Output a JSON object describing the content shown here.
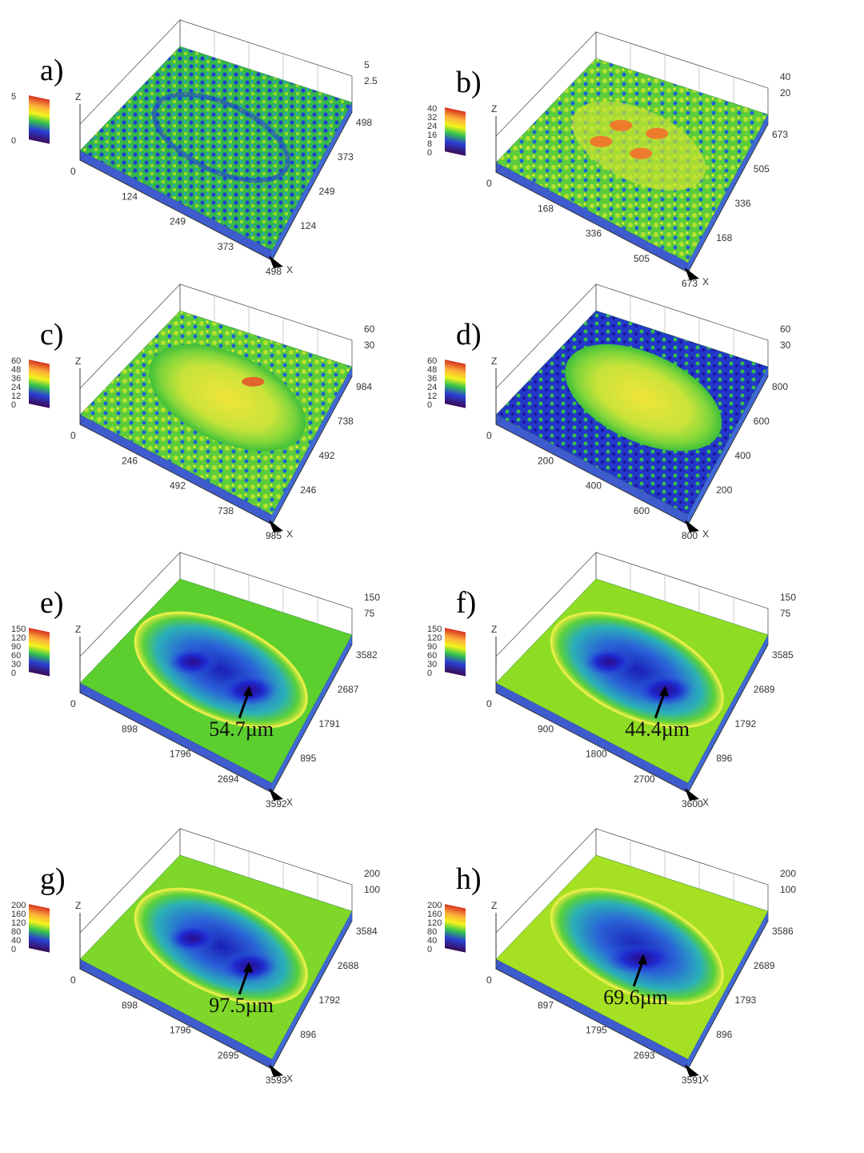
{
  "figure": {
    "panels": [
      {
        "label": "a)",
        "x_ticks": [
          "0",
          "124",
          "249",
          "373",
          "498"
        ],
        "y_ticks": [
          "124",
          "249",
          "373",
          "498"
        ],
        "z_ticks": [
          "5",
          "2.5"
        ],
        "colorbar_ticks": [
          "5",
          "0"
        ],
        "annotation": "",
        "surface": "flat-noise",
        "base": "#1aa84a"
      },
      {
        "label": "b)",
        "x_ticks": [
          "0",
          "168",
          "336",
          "505",
          "673"
        ],
        "y_ticks": [
          "168",
          "336",
          "505",
          "673"
        ],
        "z_ticks": [
          "40",
          "20"
        ],
        "colorbar_ticks": [
          "40",
          "32",
          "24",
          "16",
          "8",
          "0"
        ],
        "annotation": "",
        "surface": "rough-peaks",
        "base": "#5fcf30"
      },
      {
        "label": "c)",
        "x_ticks": [
          "0",
          "246",
          "492",
          "738",
          "985"
        ],
        "y_ticks": [
          "246",
          "492",
          "738",
          "984"
        ],
        "z_ticks": [
          "60",
          "30"
        ],
        "colorbar_ticks": [
          "60",
          "48",
          "36",
          "24",
          "12",
          "0"
        ],
        "annotation": "",
        "surface": "mound",
        "base": "#3fbf3a"
      },
      {
        "label": "d)",
        "x_ticks": [
          "0",
          "200",
          "400",
          "600",
          "800"
        ],
        "y_ticks": [
          "200",
          "400",
          "600",
          "800"
        ],
        "z_ticks": [
          "60",
          "30"
        ],
        "colorbar_ticks": [
          "60",
          "48",
          "36",
          "24",
          "12",
          "0"
        ],
        "annotation": "",
        "surface": "mound-blue",
        "base": "#2a4fd0"
      },
      {
        "label": "e)",
        "x_ticks": [
          "0",
          "898",
          "1796",
          "2694",
          "3592"
        ],
        "y_ticks": [
          "895",
          "1791",
          "2687",
          "3582"
        ],
        "z_ticks": [
          "150",
          "75"
        ],
        "colorbar_ticks": [
          "150",
          "120",
          "90",
          "60",
          "30",
          "0"
        ],
        "annotation": "54.7µm",
        "surface": "crater",
        "base": "#5ccf2e"
      },
      {
        "label": "f)",
        "x_ticks": [
          "0",
          "900",
          "1800",
          "2700",
          "3600"
        ],
        "y_ticks": [
          "896",
          "1792",
          "2689",
          "3585"
        ],
        "z_ticks": [
          "150",
          "75"
        ],
        "colorbar_ticks": [
          "150",
          "120",
          "90",
          "60",
          "30",
          "0"
        ],
        "annotation": "44.4µm",
        "surface": "crater",
        "base": "#8fdc24"
      },
      {
        "label": "g)",
        "x_ticks": [
          "0",
          "898",
          "1796",
          "2695",
          "3593"
        ],
        "y_ticks": [
          "896",
          "1792",
          "2688",
          "3584"
        ],
        "z_ticks": [
          "200",
          "100"
        ],
        "colorbar_ticks": [
          "200",
          "160",
          "120",
          "80",
          "40",
          "0"
        ],
        "annotation": "97.5µm",
        "surface": "crater",
        "base": "#7fd829"
      },
      {
        "label": "h)",
        "x_ticks": [
          "0",
          "897",
          "1795",
          "2693",
          "3591"
        ],
        "y_ticks": [
          "896",
          "1793",
          "2689",
          "3586"
        ],
        "z_ticks": [
          "200",
          "100"
        ],
        "colorbar_ticks": [
          "200",
          "160",
          "120",
          "80",
          "40",
          "0"
        ],
        "annotation": "69.6µm",
        "surface": "crater-single",
        "base": "#a6e022"
      }
    ],
    "axis_letters": {
      "x": "X",
      "z": "Z"
    }
  }
}
